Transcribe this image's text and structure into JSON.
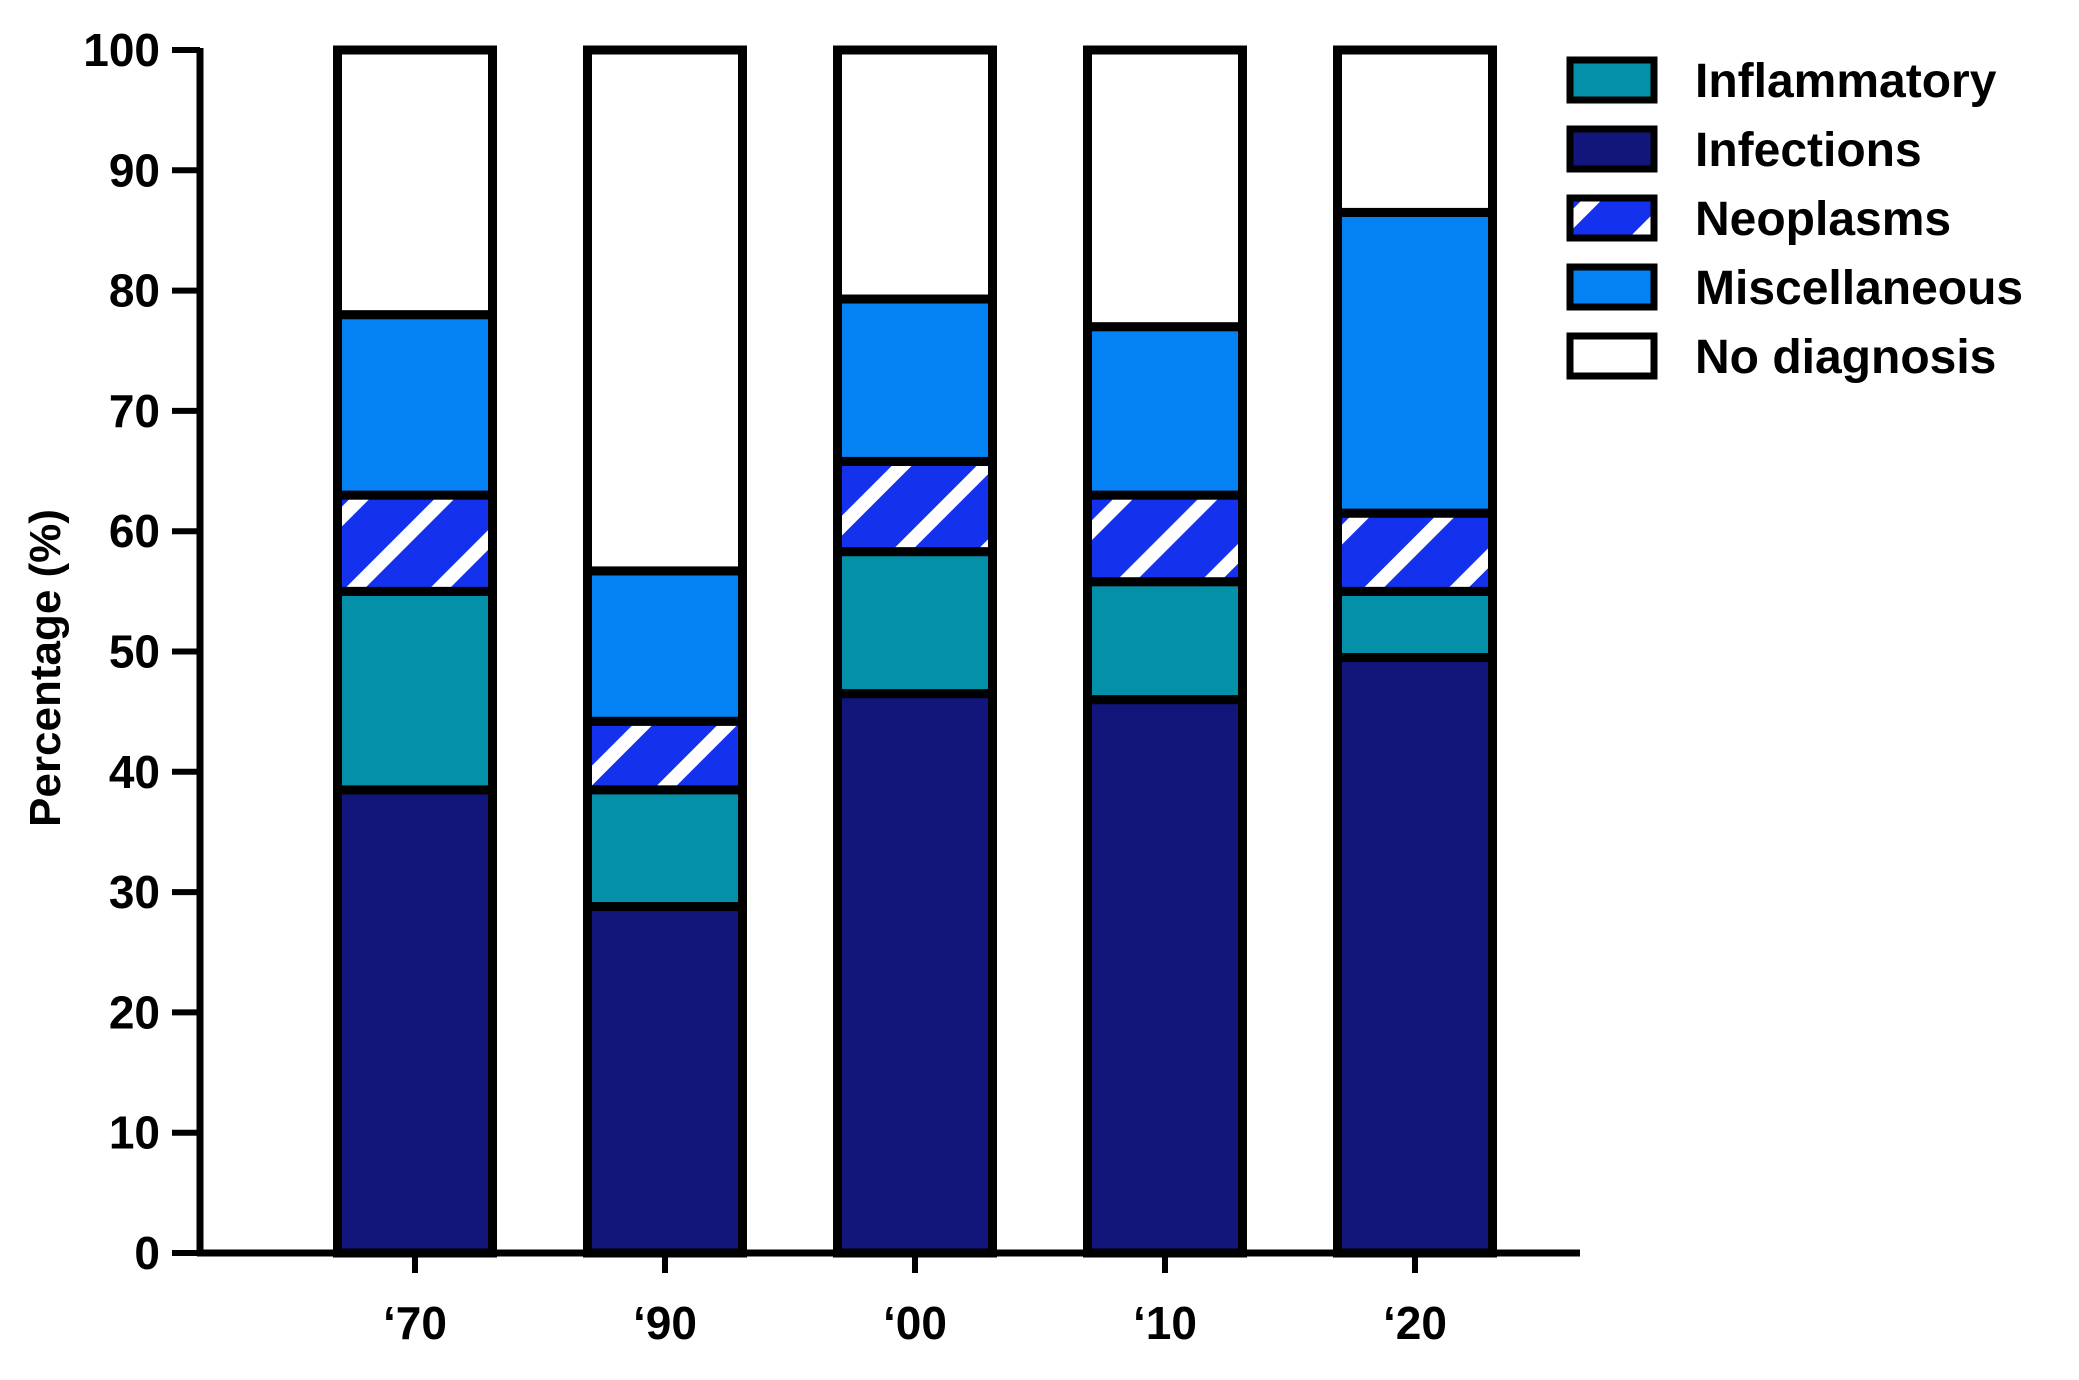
{
  "chart_data": {
    "type": "bar",
    "stacked": true,
    "categories": [
      "‘70",
      "‘90",
      "‘00",
      "‘10",
      "‘20"
    ],
    "series": [
      {
        "name": "Infections",
        "color": "#12157a",
        "pattern": "solid",
        "values": [
          38.5,
          28.8,
          46.5,
          46.0,
          49.5
        ]
      },
      {
        "name": "Inflammatory",
        "color": "#0590aa",
        "pattern": "solid",
        "values": [
          16.5,
          9.7,
          11.8,
          9.8,
          5.5
        ]
      },
      {
        "name": "Neoplasms",
        "color": "#1432ee",
        "pattern": "hatched",
        "values": [
          8.0,
          5.7,
          7.5,
          7.2,
          6.5
        ]
      },
      {
        "name": "Miscellaneous",
        "color": "#0481f2",
        "pattern": "solid",
        "values": [
          15.0,
          12.5,
          13.5,
          14.0,
          25.0
        ]
      },
      {
        "name": "No diagnosis",
        "color": "#ffffff",
        "pattern": "solid",
        "values": [
          22.0,
          43.3,
          20.7,
          23.0,
          13.5
        ]
      }
    ],
    "legend_order": [
      "Inflammatory",
      "Infections",
      "Neoplasms",
      "Miscellaneous",
      "No diagnosis"
    ],
    "legend_position": "top-right",
    "ylabel": "Percentage (%)",
    "xlabel": "",
    "ylim": [
      0,
      100
    ],
    "yticks": [
      0,
      10,
      20,
      30,
      40,
      50,
      60,
      70,
      80,
      90,
      100
    ],
    "grid": false
  }
}
